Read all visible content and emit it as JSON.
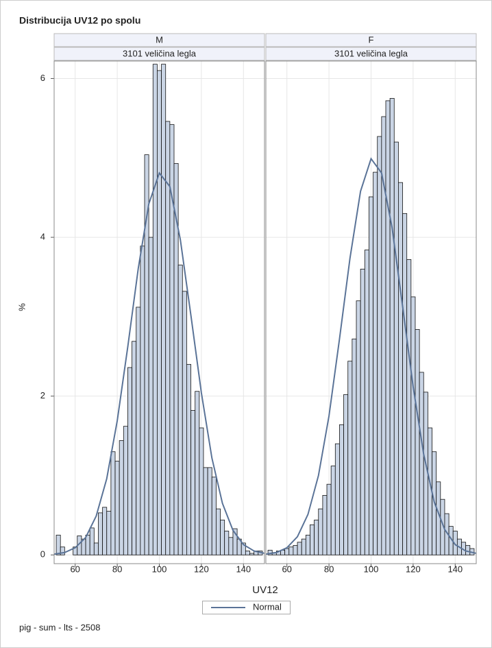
{
  "chart_data": {
    "type": "histogram",
    "title": "Distribucija UV12 po spolu",
    "xlabel": "UV12",
    "ylabel": "%",
    "bins": [
      51,
      53,
      55,
      57,
      59,
      61,
      63,
      65,
      67,
      69,
      71,
      73,
      75,
      77,
      79,
      81,
      83,
      85,
      87,
      89,
      91,
      93,
      95,
      97,
      99,
      101,
      103,
      105,
      107,
      109,
      111,
      113,
      115,
      117,
      119,
      121,
      123,
      125,
      127,
      129,
      131,
      133,
      135,
      137,
      139,
      141,
      143,
      145,
      147,
      149
    ],
    "xlim": [
      50,
      150
    ],
    "xticks": [
      60,
      80,
      100,
      120,
      140
    ],
    "ylim": [
      -0.11,
      6.22
    ],
    "yticks": [
      0,
      2,
      4,
      6
    ],
    "grid": true,
    "bar_color": "#cad5e5",
    "curve_name": "Normal",
    "curve_color": "#5a7397",
    "curve_x": [
      50,
      55,
      60,
      65,
      70,
      75,
      80,
      85,
      90,
      95,
      100,
      105,
      110,
      115,
      120,
      125,
      130,
      135,
      140,
      145,
      150
    ],
    "panels": [
      {
        "label": "M",
        "sublabel": "3101 veličina legla",
        "values": [
          0.25,
          0.1,
          0,
          0,
          0.1,
          0.24,
          0.2,
          0.25,
          0.34,
          0.15,
          0.53,
          0.6,
          0.55,
          1.3,
          1.18,
          1.44,
          1.62,
          2.36,
          2.69,
          3.12,
          3.89,
          5.04,
          4.0,
          6.18,
          6.1,
          6.18,
          5.46,
          5.42,
          4.93,
          3.65,
          3.32,
          2.4,
          1.82,
          2.06,
          1.6,
          1.1,
          1.1,
          0.98,
          0.58,
          0.44,
          0.3,
          0.22,
          0.33,
          0.2,
          0.15,
          0.05,
          0.02,
          0.05,
          0.05
        ],
        "curve": [
          0.01,
          0.03,
          0.09,
          0.22,
          0.49,
          0.96,
          1.69,
          2.62,
          3.61,
          4.42,
          4.81,
          4.64,
          3.97,
          3.02,
          2.04,
          1.22,
          0.65,
          0.31,
          0.13,
          0.05,
          0.02
        ]
      },
      {
        "label": "F",
        "sublabel": "3101 veličina legla",
        "values": [
          0.06,
          0.03,
          0.05,
          0.06,
          0.08,
          0.1,
          0.12,
          0.16,
          0.2,
          0.25,
          0.38,
          0.44,
          0.58,
          0.75,
          0.89,
          1.12,
          1.4,
          1.64,
          2.02,
          2.44,
          2.72,
          3.2,
          3.6,
          3.84,
          4.51,
          4.82,
          5.27,
          5.52,
          5.72,
          5.75,
          5.2,
          4.69,
          4.3,
          3.72,
          3.25,
          2.84,
          2.3,
          2.05,
          1.6,
          1.3,
          0.92,
          0.7,
          0.52,
          0.36,
          0.3,
          0.2,
          0.16,
          0.12,
          0.08
        ],
        "curve": [
          0.01,
          0.03,
          0.09,
          0.23,
          0.51,
          1.0,
          1.75,
          2.72,
          3.74,
          4.58,
          4.99,
          4.81,
          4.12,
          3.13,
          2.12,
          1.27,
          0.67,
          0.32,
          0.13,
          0.05,
          0.02
        ]
      }
    ]
  },
  "footnote": "pig - sum - lts - 2508"
}
